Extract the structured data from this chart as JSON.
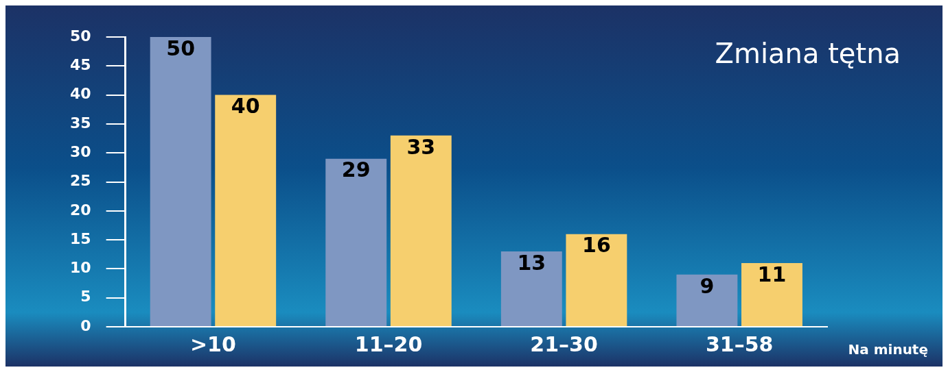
{
  "chart_data": {
    "type": "bar",
    "title": "Zmiana tętna",
    "xlabel": "Na minutę",
    "categories": [
      ">10",
      "11–20",
      "21–30",
      "31–58"
    ],
    "series": [
      {
        "color": "#7f97c2",
        "values": [
          50,
          29,
          13,
          9
        ]
      },
      {
        "color": "#f6cf6e",
        "values": [
          40,
          33,
          16,
          11
        ]
      }
    ],
    "ylim": [
      0,
      50
    ],
    "yticks": [
      0,
      5,
      10,
      15,
      20,
      25,
      30,
      35,
      40,
      45,
      50
    ],
    "grid": false,
    "legend": false,
    "data_labels": true
  }
}
